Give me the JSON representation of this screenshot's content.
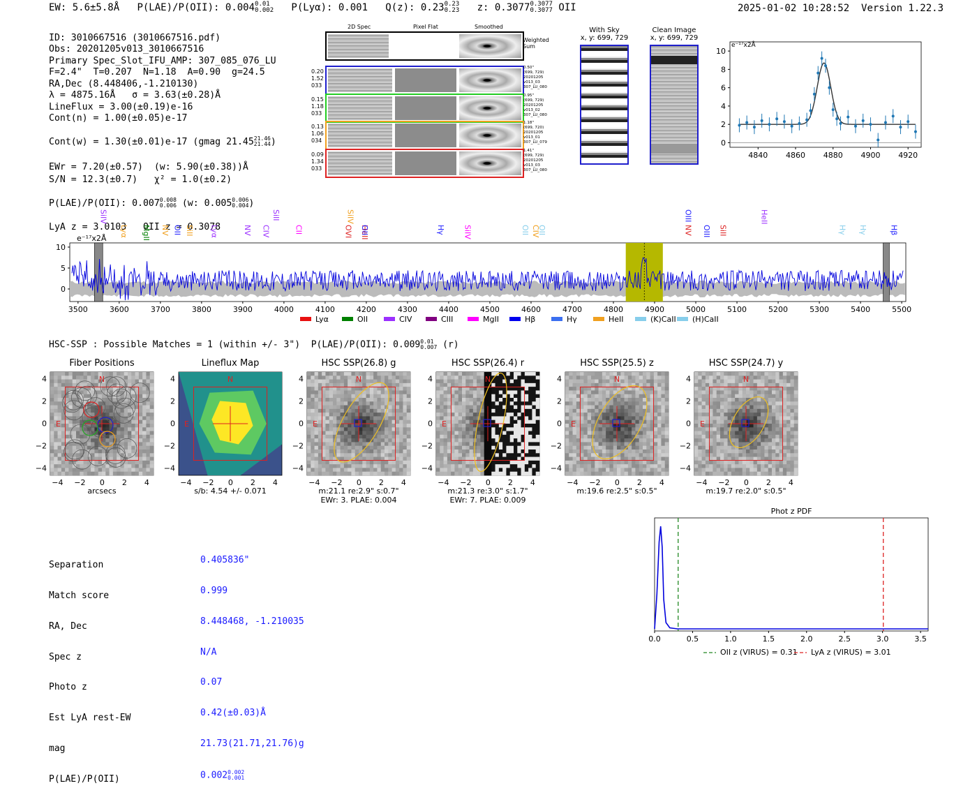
{
  "header": {
    "ew": "EW: 5.6±5.8Å",
    "plae_label": "P(LAE)/P(OII): 0.004",
    "plae_sup": "0.01",
    "plae_sub": "0.002",
    "plya": "P(Lyα): 0.001",
    "qz_label": "Q(z): 0.23",
    "qz_sup": "0.23",
    "qz_sub": "0.23",
    "z_label": "z: 0.3077",
    "z_sup": "0.3077",
    "z_sub": "0.3077",
    "z_line": "OII",
    "timestamp": "2025-01-02 10:28:52",
    "version": "Version 1.22.3"
  },
  "info": {
    "l1": "ID: 3010667516 (3010667516.pdf)",
    "l2": "Obs: 20201205v013_3010667516",
    "l3": "Primary Spec_Slot_IFU_AMP: 307_085_076_LU",
    "l4": "F=2.4\"  T=0.207  N=1.18  A=0.90  g=24.5",
    "l5": "RA,Dec (8.448406,-1.210130)",
    "l6": "λ = 4875.16Å   σ = 3.63(±0.28)Å",
    "l7": "LineFlux = 3.00(±0.19)e-16",
    "l8": "Cont(n) = 1.00(±0.05)e-17",
    "l9": "Cont(w) = 1.30(±0.01)e-17 (gmag 21.45",
    "l9_sup": "21.46",
    "l9_sub": "21.44",
    "l9_end": ")",
    "l10": "EWr = 7.20(±0.57)  (w: 5.90(±0.38))Å",
    "l11": "S/N = 12.3(±0.7)   χ² = 1.0(±0.2)",
    "l12": "P(LAE)/P(OII): 0.007",
    "l12_sup": "0.008",
    "l12_sub": "0.006",
    "l12_mid": " (w: 0.005",
    "l12_sup2": "0.006",
    "l12_sub2": "0.004",
    "l12_end": ")",
    "l13": "LyA z = 3.0103   OII z = 0.3078"
  },
  "spec2d": {
    "col_headers": [
      "2D Spec",
      "Pixel Flat",
      "Smoothed"
    ],
    "weighted_sum": "Weighted Sum",
    "rows": [
      {
        "left": [
          "0.20",
          "1.52",
          "033"
        ],
        "right": [
          "0.50\"",
          "(699, 729)",
          "20201205",
          "v013_03",
          "307_LU_080"
        ],
        "color": "#1f1fcc"
      },
      {
        "left": [
          "0.15",
          "1.18",
          "033"
        ],
        "right": [
          "0.95\"",
          "(699, 729)",
          "20201205",
          "v013_02",
          "307_LU_080"
        ],
        "color": "#22cc22"
      },
      {
        "left": [
          "0.13",
          "1.06",
          "034"
        ],
        "right": [
          "1.18\"",
          "(699, 720)",
          "20201205",
          "v013_01",
          "307_LU_079"
        ],
        "color": "#f0a020"
      },
      {
        "left": [
          "0.09",
          "1.34",
          "033"
        ],
        "right": [
          "1.41\"",
          "(699, 729)",
          "20201205",
          "v013_03",
          "307_LU_080"
        ],
        "color": "#dd2222"
      }
    ]
  },
  "sky": {
    "with_sky": "With Sky",
    "with_sky_xy": "x, y: 699, 729",
    "clean": "Clean Image",
    "clean_xy": "x, y: 699, 729"
  },
  "zoom_chart": {
    "unit_label": "e⁻¹⁷x2Å",
    "xticks": [
      "4840",
      "4860",
      "4880",
      "4900",
      "4920"
    ],
    "yticks": [
      "0",
      "2",
      "4",
      "6",
      "8",
      "10"
    ]
  },
  "chart_data": [
    {
      "type": "line",
      "title": "",
      "ylabel": "e⁻¹⁷x2Å",
      "xlim": [
        4825,
        4927
      ],
      "ylim": [
        -0.5,
        11
      ],
      "x": [
        4830,
        4834,
        4838,
        4842,
        4846,
        4850,
        4854,
        4858,
        4862,
        4866,
        4868,
        4870,
        4872,
        4874,
        4876,
        4878,
        4880,
        4882,
        4884,
        4888,
        4892,
        4896,
        4900,
        4904,
        4908,
        4912,
        4916,
        4920,
        4924
      ],
      "y": [
        1.9,
        2.2,
        1.7,
        2.4,
        2.0,
        2.6,
        2.3,
        1.8,
        2.1,
        2.5,
        3.5,
        5.3,
        7.6,
        9.2,
        8.4,
        6.0,
        3.6,
        2.6,
        2.1,
        2.8,
        1.8,
        2.4,
        2.0,
        0.3,
        2.2,
        2.9,
        1.7,
        2.3,
        1.2
      ],
      "fit": "gaussian centered 4875.16 peak ~8.7 continuum 2.0"
    },
    {
      "type": "line",
      "title": "",
      "ylabel": "e⁻¹⁷x2Å",
      "xlim": [
        3480,
        5510
      ],
      "ylim": [
        -3,
        11
      ],
      "xticks": [
        3500,
        3600,
        3700,
        3800,
        3900,
        4000,
        4100,
        4200,
        4300,
        4400,
        4500,
        4600,
        4700,
        4800,
        4900,
        5000,
        5100,
        5200,
        5300,
        5400,
        5500
      ],
      "yticks": [
        0,
        5,
        10
      ],
      "highlight": [
        4830,
        4920
      ],
      "line_labels": [
        {
          "name": "SiIV",
          "x": 3555,
          "color": "#9b30ff"
        },
        {
          "name": "Lyα",
          "x": 3605,
          "color": "#f0a020"
        },
        {
          "name": "MgII",
          "x": 3660,
          "color": "#008000"
        },
        {
          "name": "NV",
          "x": 3705,
          "color": "#f0a020"
        },
        {
          "name": "OII",
          "x": 3735,
          "color": "#2020ff"
        },
        {
          "name": "SiII",
          "x": 3765,
          "color": "#f0a020"
        },
        {
          "name": "Lyα",
          "x": 3825,
          "color": "#9b30ff"
        },
        {
          "name": "NV",
          "x": 3905,
          "color": "#9b30ff"
        },
        {
          "name": "CIV",
          "x": 3950,
          "color": "#9b30ff"
        },
        {
          "name": "SiII",
          "x": 3975,
          "color": "#9b30ff"
        },
        {
          "name": "CII",
          "x": 4030,
          "color": "#ff00ff"
        },
        {
          "name": "OVI",
          "x": 4150,
          "color": "#dd2222"
        },
        {
          "name": "SiIV",
          "x": 4155,
          "color": "#f0a020"
        },
        {
          "name": "HeII",
          "x": 4190,
          "color": "#dd2222"
        },
        {
          "name": "OII",
          "x": 4190,
          "color": "#2020ff"
        },
        {
          "name": "Hγ",
          "x": 4375,
          "color": "#2020ff"
        },
        {
          "name": "SiIV",
          "x": 4440,
          "color": "#ff00ff"
        },
        {
          "name": "OII",
          "x": 4580,
          "color": "#87ceeb"
        },
        {
          "name": "CIV",
          "x": 4605,
          "color": "#f0a020"
        },
        {
          "name": "OII",
          "x": 4620,
          "color": "#87ceeb"
        },
        {
          "name": "NV",
          "x": 4975,
          "color": "#dd2222"
        },
        {
          "name": "OIII",
          "x": 4975,
          "color": "#2020ff"
        },
        {
          "name": "OIII",
          "x": 5020,
          "color": "#2020ff"
        },
        {
          "name": "SiII",
          "x": 5060,
          "color": "#dd2222"
        },
        {
          "name": "HeII",
          "x": 5160,
          "color": "#9b30ff"
        },
        {
          "name": "Hγ",
          "x": 5350,
          "color": "#87ceeb"
        },
        {
          "name": "Hγ",
          "x": 5400,
          "color": "#87ceeb"
        },
        {
          "name": "Hβ",
          "x": 5475,
          "color": "#2020ff"
        }
      ],
      "legend": [
        {
          "name": "Lyα",
          "color": "#e81010"
        },
        {
          "name": "OII",
          "color": "#008000"
        },
        {
          "name": "CIV",
          "color": "#9b30ff"
        },
        {
          "name": "CIII",
          "color": "#800080"
        },
        {
          "name": "MgII",
          "color": "#ff00ff"
        },
        {
          "name": "Hβ",
          "color": "#0000ee"
        },
        {
          "name": "Hγ",
          "color": "#3b6ff0"
        },
        {
          "name": "HeII",
          "color": "#f0a020"
        },
        {
          "name": "(K)CaII",
          "color": "#87ceeb"
        },
        {
          "name": "(H)CaII",
          "color": "#87ceeb"
        }
      ]
    },
    {
      "type": "line",
      "title": "Phot z PDF",
      "xlim": [
        0,
        3.6
      ],
      "xticks": [
        "0.0",
        "0.5",
        "1.0",
        "1.5",
        "2.0",
        "2.5",
        "3.0",
        "3.5"
      ],
      "x": [
        0.0,
        0.03,
        0.06,
        0.08,
        0.1,
        0.12,
        0.15,
        0.2,
        0.3,
        0.5,
        1.0,
        2.0,
        3.0,
        3.6
      ],
      "y": [
        0.02,
        0.35,
        0.85,
        1.0,
        0.8,
        0.3,
        0.08,
        0.03,
        0.02,
        0.02,
        0.02,
        0.02,
        0.02,
        0.02
      ],
      "vlines": [
        {
          "x": 0.31,
          "color": "#228822",
          "label": "OII z (VIRUS) = 0.31"
        },
        {
          "x": 3.01,
          "color": "#dd2222",
          "label": "LyA z (VIRUS) = 3.01"
        }
      ]
    }
  ],
  "hsc": {
    "header": "HSC-SSP : Possible Matches = 1 (within +/- 3\")",
    "plae_label": "P(LAE)/P(OII): 0.009",
    "plae_sup": "0.01",
    "plae_sub": "0.007",
    "plae_band": "(r)",
    "axis_ticks": [
      "−4",
      "−2",
      "0",
      "2",
      "4"
    ],
    "panels": [
      {
        "title": "Fiber Positions",
        "cap1": "arcsecs",
        "cap2": ""
      },
      {
        "title": "Lineflux Map",
        "cap1": "s/b: 4.54 +/- 0.071",
        "cap2": ""
      },
      {
        "title": "HSC SSP(26.8) g",
        "cap1": "m:21.1  re:2.9\"  s:0.7\"",
        "cap2": "EWr: 3. PLAE: 0.004"
      },
      {
        "title": "HSC SSP(26.4) r",
        "cap1": "m:21.3  re:3.0\"  s:1.7\"",
        "cap2": "EWr: 7. PLAE: 0.009"
      },
      {
        "title": "HSC SSP(25.5) z",
        "cap1": "m:19.6  re:2.5\"  s:0.5\"",
        "cap2": ""
      },
      {
        "title": "HSC SSP(24.7) y",
        "cap1": "m:19.7  re:2.0\"  s:0.5\"",
        "cap2": ""
      }
    ],
    "n": "N",
    "e": "E"
  },
  "match_table": {
    "labels": [
      "Separation",
      "Match score",
      "RA, Dec",
      "Spec z",
      "Photo z",
      "Est LyA rest-EW",
      "mag",
      "P(LAE)/P(OII)"
    ],
    "values": [
      "0.405836\"",
      "0.999",
      "8.448468, -1.210035",
      "N/A",
      "0.07",
      "0.42(±0.03)Å",
      "21.73(21.71,21.76)g",
      "0.002"
    ],
    "last_sup": "0.002",
    "last_sub": "0.001"
  }
}
